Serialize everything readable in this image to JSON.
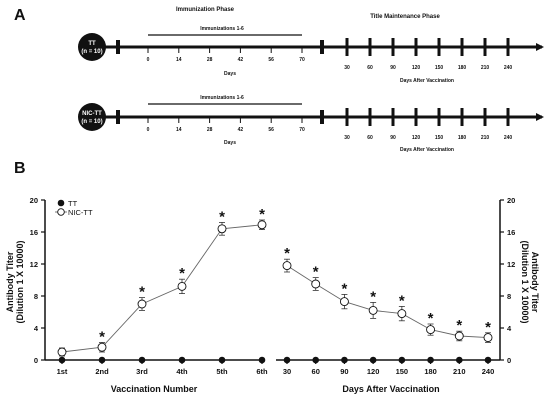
{
  "panel_a": {
    "letter": "A",
    "immunization_phase_label": "Immunization Phase",
    "maintenance_phase_label": "Title Maintenance Phase",
    "immunizations_label": "Immunizations 1-6",
    "days_label": "Days",
    "days_after_label": "Days After Vaccination",
    "day_ticks": [
      "0",
      "14",
      "28",
      "42",
      "56",
      "70"
    ],
    "after_ticks": [
      "30",
      "60",
      "90",
      "120",
      "150",
      "180",
      "210",
      "240"
    ],
    "groups": [
      {
        "name": "TT",
        "n": "(n = 10)"
      },
      {
        "name": "NIC-TT",
        "n": "(n = 10)"
      }
    ]
  },
  "panel_b": {
    "letter": "B"
  },
  "chart_data": [
    {
      "type": "line",
      "title": "",
      "xlabel": "Vaccination Number",
      "ylabel": [
        "Antibody Titer",
        "(Dilution 1 X 10000)"
      ],
      "categories": [
        "1st",
        "2nd",
        "3rd",
        "4th",
        "5th",
        "6th"
      ],
      "ylim": [
        0,
        20
      ],
      "yticks": [
        "0",
        "4",
        "8",
        "12",
        "16",
        "20"
      ],
      "grid": false,
      "legend_position": "top-left",
      "series": [
        {
          "name": "TT",
          "marker": "filled-circle",
          "values": [
            0,
            0,
            0,
            0,
            0,
            0
          ],
          "errors": [
            0,
            0,
            0,
            0,
            0,
            0
          ]
        },
        {
          "name": "NIC-TT",
          "marker": "open-circle",
          "values": [
            1.0,
            1.6,
            7.0,
            9.2,
            16.4,
            16.9
          ],
          "errors": [
            0.5,
            0.6,
            0.8,
            0.9,
            0.8,
            0.6
          ]
        }
      ],
      "significance": [
        "",
        "*",
        "*",
        "*",
        "*",
        "*"
      ]
    },
    {
      "type": "line",
      "title": "",
      "xlabel": "Days After Vaccination",
      "ylabel": [
        "Antibody Titer",
        "(Dilution 1 X 10000)"
      ],
      "categories": [
        "30",
        "60",
        "90",
        "120",
        "150",
        "180",
        "210",
        "240"
      ],
      "ylim": [
        0,
        20
      ],
      "yticks": [
        "0",
        "4",
        "8",
        "12",
        "16",
        "20"
      ],
      "grid": false,
      "series": [
        {
          "name": "TT",
          "marker": "filled-circle",
          "values": [
            0,
            0,
            0,
            0,
            0,
            0,
            0,
            0
          ],
          "errors": [
            0,
            0,
            0,
            0,
            0,
            0,
            0,
            0
          ]
        },
        {
          "name": "NIC-TT",
          "marker": "open-circle",
          "values": [
            11.8,
            9.5,
            7.3,
            6.2,
            5.8,
            3.8,
            3.0,
            2.8
          ],
          "errors": [
            0.8,
            0.8,
            0.9,
            1.0,
            0.9,
            0.7,
            0.6,
            0.6
          ]
        }
      ],
      "significance": [
        "*",
        "*",
        "*",
        "*",
        "*",
        "*",
        "*",
        "*"
      ]
    }
  ]
}
